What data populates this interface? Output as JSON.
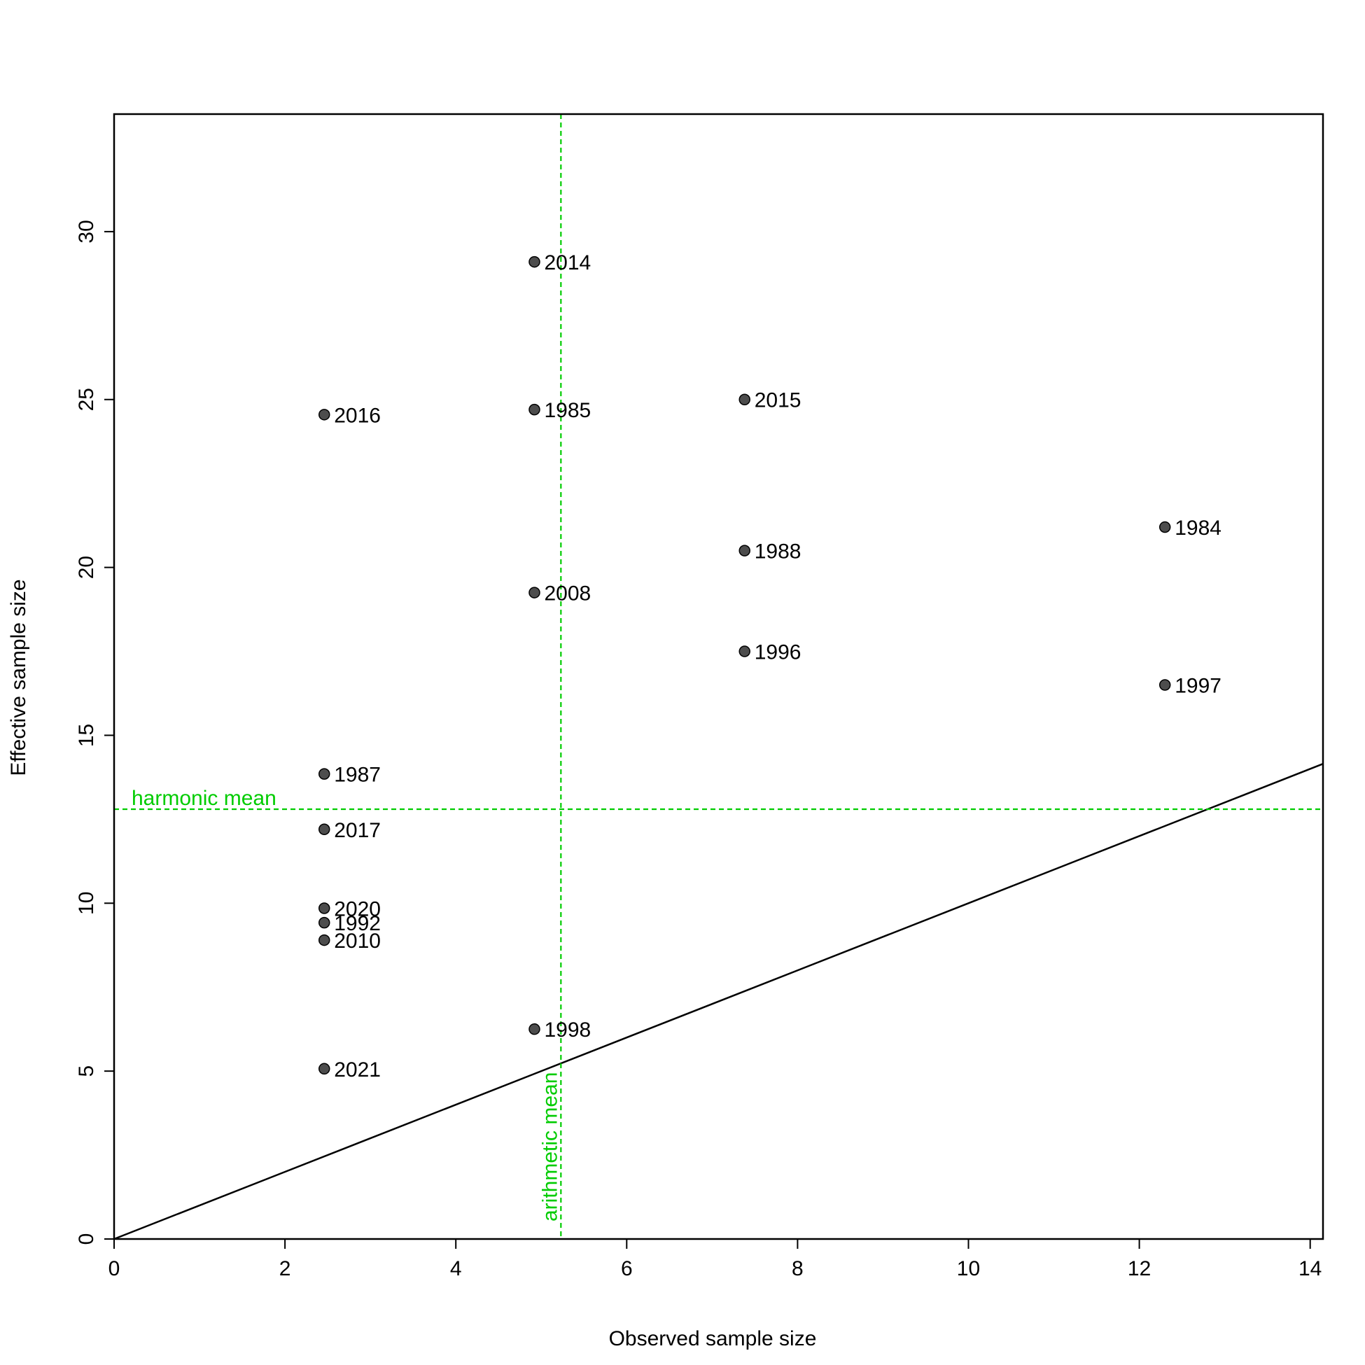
{
  "chart_data": {
    "type": "scatter",
    "title": "",
    "xlabel": "Observed sample size",
    "ylabel": "Effective sample size",
    "xlim": [
      0,
      14.15
    ],
    "ylim": [
      0,
      33.5
    ],
    "xticks": [
      0,
      2,
      4,
      6,
      8,
      10,
      12,
      14
    ],
    "yticks": [
      0,
      5,
      10,
      15,
      20,
      25,
      30
    ],
    "grid": false,
    "colors": {
      "points": "#4d4d4d",
      "point_outline": "#000000",
      "reference_lines": "#00cc00",
      "diagonal": "#000000",
      "text": "#000000"
    },
    "points": [
      {
        "label": "1984",
        "x": 12.3,
        "y": 21.2
      },
      {
        "label": "1985",
        "x": 4.92,
        "y": 24.7
      },
      {
        "label": "1987",
        "x": 2.46,
        "y": 13.85
      },
      {
        "label": "1988",
        "x": 7.38,
        "y": 20.5
      },
      {
        "label": "1992",
        "x": 2.46,
        "y": 9.42
      },
      {
        "label": "1996",
        "x": 7.38,
        "y": 17.5
      },
      {
        "label": "1997",
        "x": 12.3,
        "y": 16.5
      },
      {
        "label": "1998",
        "x": 4.92,
        "y": 6.25
      },
      {
        "label": "2008",
        "x": 4.92,
        "y": 19.25
      },
      {
        "label": "2010",
        "x": 2.46,
        "y": 8.9
      },
      {
        "label": "2014",
        "x": 4.92,
        "y": 29.1
      },
      {
        "label": "2015",
        "x": 7.38,
        "y": 25.0
      },
      {
        "label": "2016",
        "x": 2.46,
        "y": 24.55
      },
      {
        "label": "2017",
        "x": 2.46,
        "y": 12.2
      },
      {
        "label": "2020",
        "x": 2.46,
        "y": 9.85
      },
      {
        "label": "2021",
        "x": 2.46,
        "y": 5.07
      }
    ],
    "reference_lines": [
      {
        "label": "arithmetic mean",
        "orientation": "vertical",
        "value": 5.23,
        "style": "dashed"
      },
      {
        "label": "harmonic mean",
        "orientation": "horizontal",
        "value": 12.8,
        "style": "dashed"
      }
    ],
    "diagonal": {
      "label": "",
      "slope": 1,
      "intercept": 0
    }
  }
}
